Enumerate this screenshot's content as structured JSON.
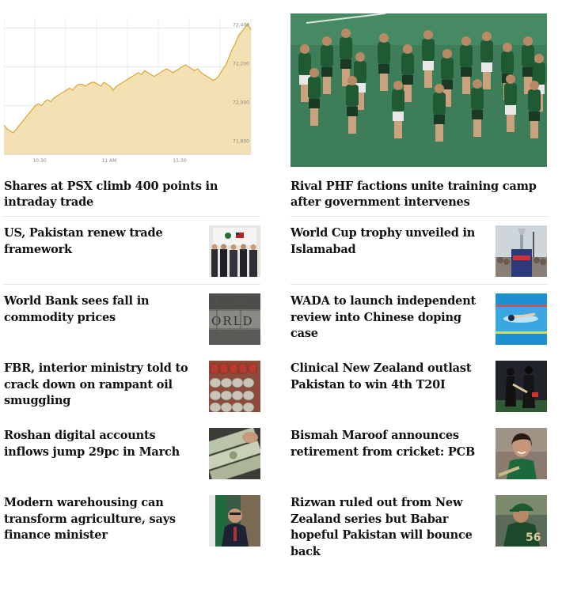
{
  "left": {
    "lead": {
      "title": "Shares at PSX climb 400 points in intraday trade",
      "chart": {
        "x_ticks": [
          "10:30",
          "11 AM",
          "11:30"
        ],
        "y_ticks": [
          "72,400",
          "72,200",
          "72,000",
          "71,800"
        ]
      }
    },
    "items": [
      {
        "title": "US, Pakistan renew trade framework",
        "thumb_icon": "signing-ceremony-photo"
      },
      {
        "title": "World Bank sees fall in commodity prices",
        "thumb_icon": "world-bank-building-photo"
      },
      {
        "title": "FBR, interior ministry told to crack down on rampant oil smuggling",
        "thumb_icon": "oil-barrels-photo"
      },
      {
        "title": "Roshan digital accounts inflows jump 29pc in March",
        "thumb_icon": "dollar-notes-photo"
      },
      {
        "title": "Modern warehousing can transform agriculture, says finance minister",
        "thumb_icon": "finance-minister-photo"
      }
    ]
  },
  "right": {
    "lead": {
      "title": "Rival PHF factions unite training camp after government intervenes",
      "image_icon": "hockey-team-training-photo"
    },
    "items": [
      {
        "title": "World Cup trophy unveiled in Islamabad",
        "thumb_icon": "trophy-unveiling-photo"
      },
      {
        "title": "WADA to launch independent review into Chinese doping case",
        "thumb_icon": "swimmer-photo"
      },
      {
        "title": "Clinical New Zealand outlast Pakistan to win 4th T20I",
        "thumb_icon": "cricketers-photo"
      },
      {
        "title": "Bismah Maroof announces retirement from cricket: PCB",
        "thumb_icon": "bismah-maroof-photo"
      },
      {
        "title": "Rizwan ruled out from New Zealand series but Babar hopeful Pakistan will bounce back",
        "thumb_icon": "babar-azam-photo"
      }
    ]
  },
  "chart_data": {
    "type": "area",
    "x_tick_labels": [
      "10:30",
      "11 AM",
      "11:30"
    ],
    "y_tick_labels": [
      "72,400",
      "72,200",
      "72,000",
      "71,800"
    ],
    "ylim": [
      71750,
      72450
    ],
    "x": [
      0,
      1,
      2,
      3,
      4,
      5,
      6,
      7,
      8,
      9,
      10,
      11,
      12,
      13,
      14,
      15,
      16,
      17,
      18,
      19,
      20,
      21,
      22,
      23,
      24,
      25,
      26,
      27,
      28,
      29,
      30,
      31,
      32,
      33,
      34,
      35,
      36,
      37,
      38,
      39,
      40,
      41,
      42,
      43,
      44,
      45,
      46,
      47,
      48,
      49,
      50,
      51,
      52,
      53,
      54,
      55,
      56,
      57,
      58,
      59,
      60,
      61,
      62,
      63,
      64,
      65,
      66,
      67,
      68,
      69,
      70,
      71,
      72,
      73,
      74,
      75,
      76,
      77,
      78,
      79
    ],
    "y": [
      71900,
      71880,
      71870,
      71860,
      71880,
      71900,
      71920,
      71940,
      71960,
      71980,
      72000,
      72010,
      72000,
      72020,
      72030,
      72020,
      72040,
      72050,
      72060,
      72070,
      72080,
      72090,
      72080,
      72100,
      72110,
      72110,
      72100,
      72110,
      72120,
      72120,
      72110,
      72100,
      72120,
      72110,
      72100,
      72080,
      72100,
      72110,
      72120,
      72130,
      72140,
      72150,
      72160,
      72170,
      72160,
      72180,
      72170,
      72160,
      72150,
      72160,
      72170,
      72180,
      72190,
      72180,
      72170,
      72180,
      72190,
      72200,
      72210,
      72200,
      72190,
      72180,
      72190,
      72170,
      72160,
      72150,
      72140,
      72130,
      72140,
      72160,
      72190,
      72210,
      72250,
      72290,
      72320,
      72360,
      72380,
      72400,
      72420,
      72390
    ],
    "grid": true
  }
}
